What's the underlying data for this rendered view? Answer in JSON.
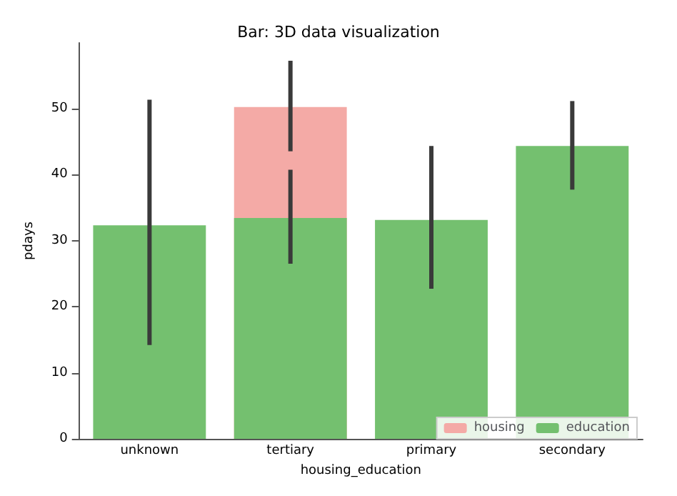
{
  "chart_data": {
    "type": "bar",
    "title": "Bar: 3D data visualization",
    "xlabel": "housing_education",
    "ylabel": "pdays",
    "categories": [
      "unknown",
      "tertiary",
      "primary",
      "secondary"
    ],
    "series": [
      {
        "name": "housing",
        "color": "#f4aaa6",
        "values": [
          null,
          50.2,
          null,
          null
        ],
        "errors": [
          null,
          [
            43.5,
            57.2
          ],
          null,
          null
        ]
      },
      {
        "name": "education",
        "color": "#74c06f",
        "values": [
          32.3,
          33.4,
          33.1,
          44.3
        ],
        "errors": [
          [
            14.2,
            51.3
          ],
          [
            26.5,
            40.7
          ],
          [
            22.7,
            44.3
          ],
          [
            37.7,
            51.1
          ]
        ]
      }
    ],
    "ylim": [
      0,
      59.9
    ],
    "yticks": [
      0,
      10,
      20,
      30,
      40,
      50
    ],
    "grid": false,
    "legend": "bottom right"
  }
}
